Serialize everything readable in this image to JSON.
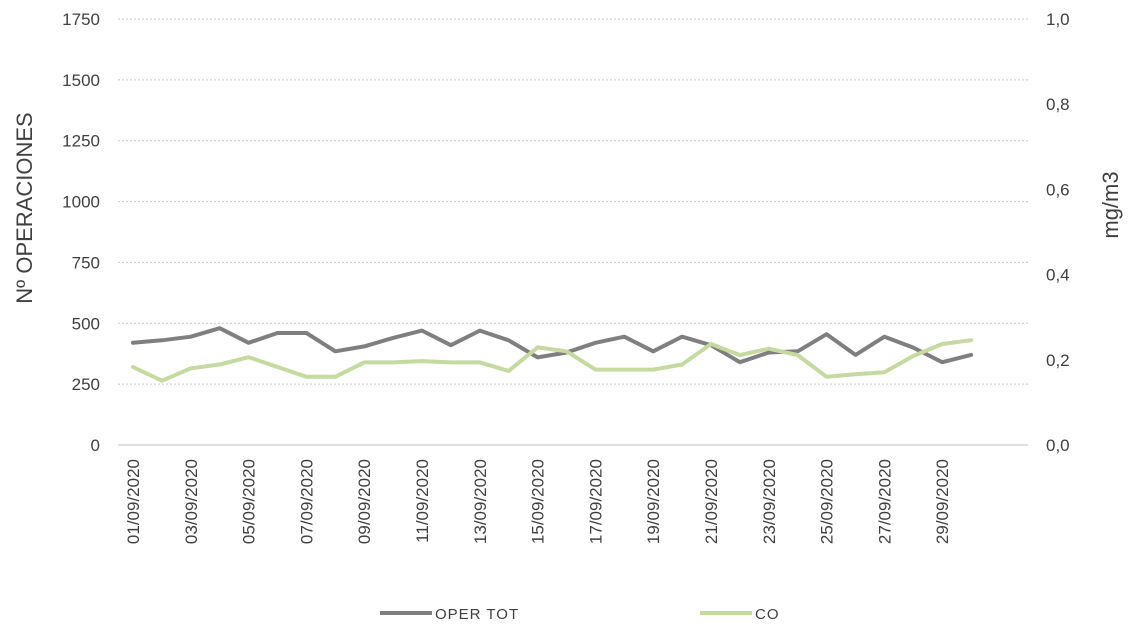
{
  "chart_data": {
    "type": "line",
    "title": "",
    "ylabel": "Nº OPERACIONES",
    "y2label": "mg/m3",
    "ylim": [
      0,
      1750
    ],
    "y2lim": [
      0,
      1.0
    ],
    "yticks": [
      "0",
      "250",
      "500",
      "750",
      "1000",
      "1250",
      "1500",
      "1750"
    ],
    "y2ticks": [
      "0,0",
      "0,2",
      "0,4",
      "0,6",
      "0,8",
      "1,0"
    ],
    "grid": true,
    "legend_position": "bottom",
    "categories": [
      "01/09/2020",
      "02/09/2020",
      "03/09/2020",
      "04/09/2020",
      "05/09/2020",
      "06/09/2020",
      "07/09/2020",
      "08/09/2020",
      "09/09/2020",
      "10/09/2020",
      "11/09/2020",
      "12/09/2020",
      "13/09/2020",
      "14/09/2020",
      "15/09/2020",
      "16/09/2020",
      "17/09/2020",
      "18/09/2020",
      "19/09/2020",
      "20/09/2020",
      "21/09/2020",
      "22/09/2020",
      "23/09/2020",
      "24/09/2020",
      "25/09/2020",
      "26/09/2020",
      "27/09/2020",
      "28/09/2020",
      "29/09/2020",
      "30/09/2020"
    ],
    "xtick_labels": [
      "01/09/2020",
      "03/09/2020",
      "05/09/2020",
      "07/09/2020",
      "09/09/2020",
      "11/09/2020",
      "13/09/2020",
      "15/09/2020",
      "17/09/2020",
      "19/09/2020",
      "21/09/2020",
      "23/09/2020",
      "25/09/2020",
      "27/09/2020",
      "29/09/2020"
    ],
    "series": [
      {
        "name": "OPER TOT",
        "axis": "left",
        "color": "#7f7f7f",
        "values": [
          420,
          430,
          445,
          480,
          420,
          460,
          460,
          385,
          405,
          440,
          470,
          410,
          470,
          430,
          360,
          380,
          420,
          445,
          385,
          445,
          410,
          340,
          380,
          385,
          455,
          370,
          445,
          400,
          340,
          370
        ]
      },
      {
        "name": "CO",
        "axis": "right",
        "color": "#c5d9a0",
        "values": [
          0.183,
          0.151,
          0.18,
          0.189,
          0.206,
          0.183,
          0.16,
          0.16,
          0.194,
          0.194,
          0.197,
          0.194,
          0.194,
          0.174,
          0.229,
          0.22,
          0.177,
          0.177,
          0.177,
          0.189,
          0.237,
          0.211,
          0.226,
          0.211,
          0.16,
          0.166,
          0.171,
          0.209,
          0.237,
          0.246
        ]
      }
    ]
  }
}
